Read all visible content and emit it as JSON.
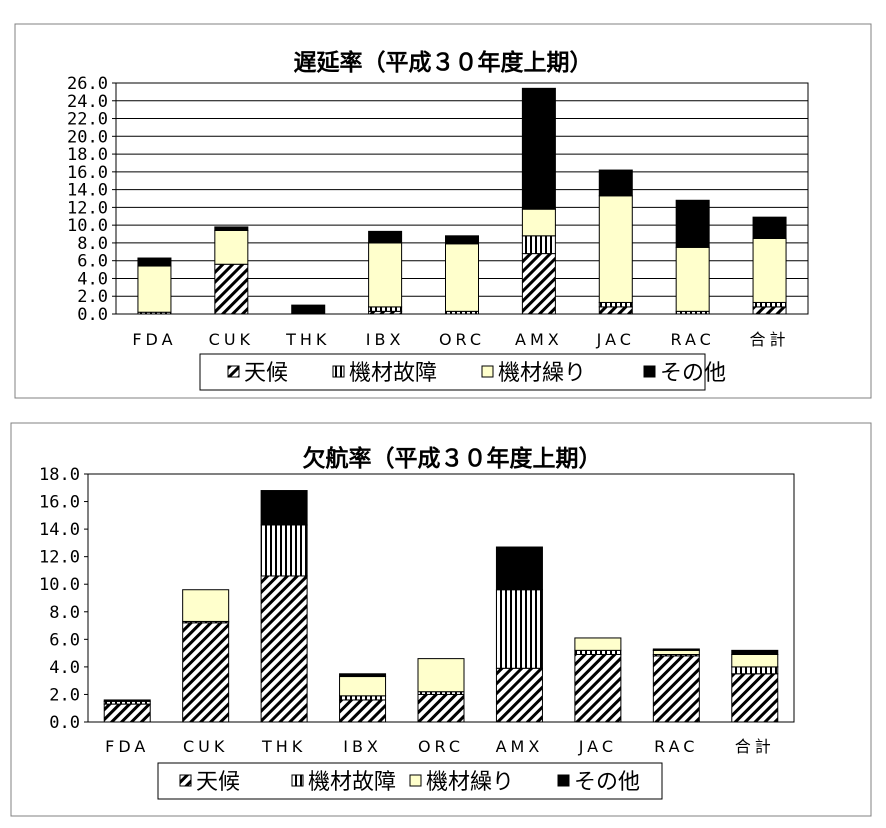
{
  "colors": {
    "tenko_fill": "#ffffff",
    "kizai_kosho_fill": "#ffffff",
    "kizai_kuri_fill": "#ffffcc",
    "sonota_fill": "#000000"
  },
  "chart_data": [
    {
      "type": "bar",
      "stacked": true,
      "title": "遅延率（平成３０年度上期）",
      "categories": [
        "FDA",
        "CUK",
        "THK",
        "IBX",
        "ORC",
        "AMX",
        "JAC",
        "RAC",
        "合計"
      ],
      "ylim": [
        0,
        26
      ],
      "yticks": [
        "0.0",
        "2.0",
        "4.0",
        "6.0",
        "8.0",
        "10.0",
        "12.0",
        "14.0",
        "16.0",
        "18.0",
        "20.0",
        "22.0",
        "24.0",
        "26.0"
      ],
      "grid": true,
      "legend_position": "bottom",
      "series": [
        {
          "name": "天候",
          "pattern": "diagonal",
          "values": [
            0.0,
            5.6,
            0.0,
            0.3,
            0.0,
            6.8,
            0.8,
            0.0,
            0.8
          ]
        },
        {
          "name": "機材故障",
          "pattern": "vertical",
          "values": [
            0.2,
            0.0,
            0.0,
            0.5,
            0.3,
            2.0,
            0.5,
            0.3,
            0.5
          ]
        },
        {
          "name": "機材繰り",
          "pattern": "solid",
          "values": [
            5.2,
            3.8,
            0.0,
            7.2,
            7.6,
            3.0,
            12.0,
            7.2,
            7.2
          ]
        },
        {
          "name": "その他",
          "pattern": "black",
          "values": [
            0.9,
            0.4,
            1.0,
            1.3,
            0.9,
            13.6,
            2.9,
            5.3,
            2.4
          ]
        }
      ]
    },
    {
      "type": "bar",
      "stacked": true,
      "title": "欠航率（平成３０年度上期）",
      "categories": [
        "FDA",
        "CUK",
        "THK",
        "IBX",
        "ORC",
        "AMX",
        "JAC",
        "RAC",
        "合計"
      ],
      "ylim": [
        0,
        18
      ],
      "yticks": [
        "0.0",
        "2.0",
        "4.0",
        "6.0",
        "8.0",
        "10.0",
        "12.0",
        "14.0",
        "16.0",
        "18.0"
      ],
      "grid": false,
      "legend_position": "bottom",
      "series": [
        {
          "name": "天候",
          "pattern": "diagonal",
          "values": [
            1.3,
            7.2,
            10.6,
            1.6,
            2.0,
            3.9,
            4.9,
            4.8,
            3.5
          ]
        },
        {
          "name": "機材故障",
          "pattern": "vertical",
          "values": [
            0.2,
            0.1,
            3.7,
            0.3,
            0.2,
            5.7,
            0.3,
            0.1,
            0.5
          ]
        },
        {
          "name": "機材繰り",
          "pattern": "solid",
          "values": [
            0.0,
            2.3,
            0.0,
            1.4,
            2.4,
            0.0,
            0.9,
            0.3,
            0.9
          ]
        },
        {
          "name": "その他",
          "pattern": "black",
          "values": [
            0.1,
            0.0,
            2.5,
            0.2,
            0.0,
            3.1,
            0.0,
            0.1,
            0.3
          ]
        }
      ]
    }
  ]
}
